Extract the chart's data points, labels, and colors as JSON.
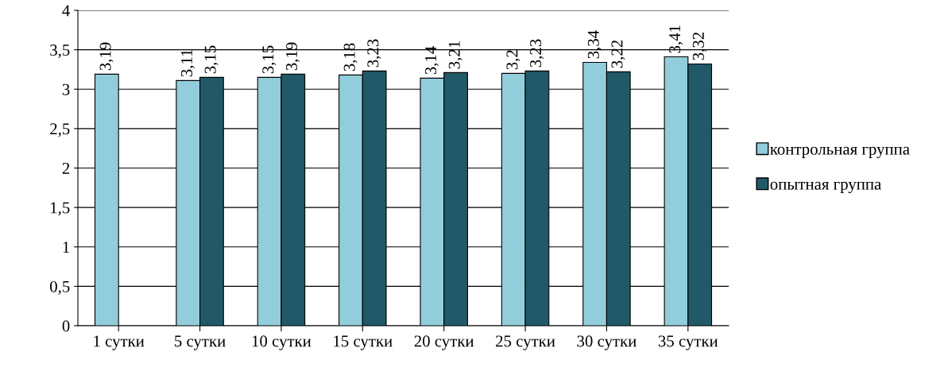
{
  "chart_data": {
    "type": "bar",
    "categories": [
      "1 сутки",
      "5 сутки",
      "10 сутки",
      "15 сутки",
      "20 сутки",
      "25 сутки",
      "30 сутки",
      "35 сутки"
    ],
    "series": [
      {
        "name": "контрольная группа",
        "color": "#92cddc",
        "values": [
          3.19,
          3.11,
          3.15,
          3.18,
          3.14,
          3.2,
          3.34,
          3.41
        ],
        "value_labels": [
          "3,19",
          "3,11",
          "3,15",
          "3,18",
          "3,14",
          "3,2",
          "3,34",
          "3,41"
        ]
      },
      {
        "name": "опытная группа",
        "color": "#215968",
        "values": [
          null,
          3.15,
          3.19,
          3.23,
          3.21,
          3.23,
          3.22,
          3.32
        ],
        "value_labels": [
          null,
          "3,15",
          "3,19",
          "3,23",
          "3,21",
          "3,23",
          "3,22",
          "3,32"
        ]
      }
    ],
    "ylim": [
      0,
      4
    ],
    "yticks": [
      0,
      {
        "value": 0.5,
        "label": "0,5"
      },
      1,
      {
        "value": 1.5,
        "label": "1,5"
      },
      2,
      {
        "value": 2.5,
        "label": "2,5"
      },
      3,
      {
        "value": 3.5,
        "label": "3,5"
      },
      4
    ],
    "grid": "y",
    "legend": "right"
  }
}
